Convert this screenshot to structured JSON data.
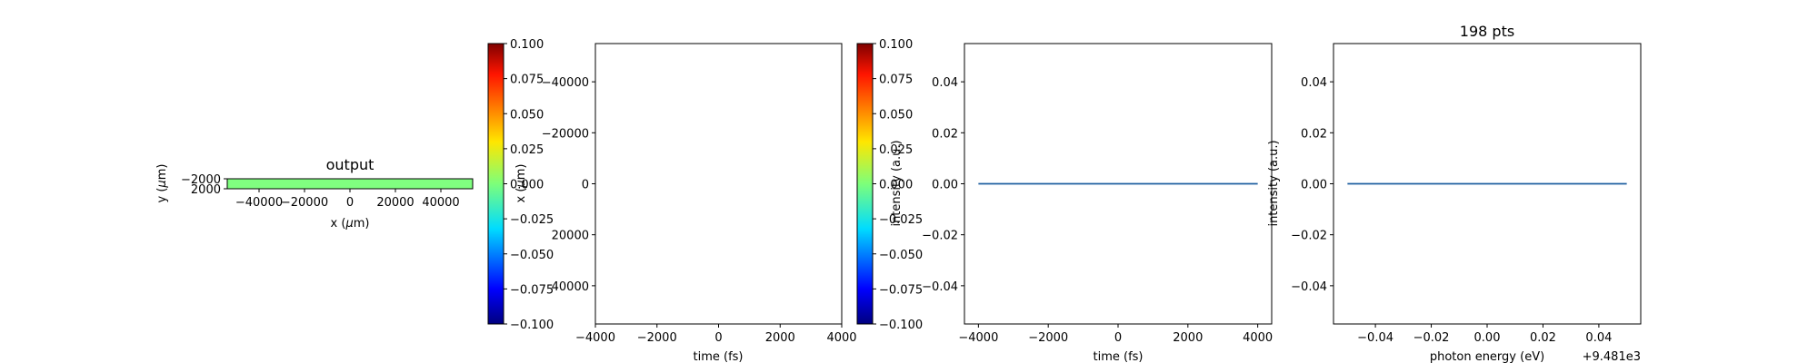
{
  "chart_data": [
    {
      "id": "output_map",
      "type": "heatmap",
      "title": "output",
      "xlabel": "x ($\\mu$m)",
      "ylabel": "y ($\\mu$m)",
      "xlim": [
        -54000,
        54000
      ],
      "ylim": [
        2000,
        -2000
      ],
      "xticks": [
        -40000,
        -20000,
        0,
        20000,
        40000
      ],
      "xtick_labels": [
        "−40000",
        "−20000",
        "0",
        "20000",
        "40000"
      ],
      "yticks": [
        -2000,
        2000
      ],
      "ytick_labels": [
        "−2000",
        "2000"
      ],
      "fill_color": "#80ff80",
      "values": "uniform 0"
    },
    {
      "id": "colorbar_1",
      "type": "heatmap",
      "colormap": "jet",
      "vlim": [
        -0.1,
        0.1
      ],
      "ticks": [
        -0.1,
        -0.075,
        -0.05,
        -0.025,
        0.0,
        0.025,
        0.05,
        0.075,
        0.1
      ],
      "tick_labels": [
        "−0.100",
        "−0.075",
        "−0.050",
        "−0.025",
        "0.000",
        "0.025",
        "0.050",
        "0.075",
        "0.100"
      ]
    },
    {
      "id": "time_map",
      "type": "heatmap",
      "xlabel": "time (fs)",
      "ylabel": "x ($\\mu$m)",
      "xlim": [
        -4000,
        4000
      ],
      "ylim": [
        55000,
        -55000
      ],
      "xticks": [
        -4000,
        -2000,
        0,
        2000,
        4000
      ],
      "xtick_labels": [
        "−4000",
        "−2000",
        "0",
        "2000",
        "4000"
      ],
      "yticks": [
        -40000,
        -20000,
        0,
        20000,
        40000
      ],
      "ytick_labels": [
        "−40000",
        "−20000",
        "0",
        "20000",
        "40000"
      ],
      "values": "empty"
    },
    {
      "id": "colorbar_2",
      "type": "heatmap",
      "colormap": "jet",
      "vlim": [
        -0.1,
        0.1
      ],
      "ticks": [
        -0.1,
        -0.075,
        -0.05,
        -0.025,
        0.0,
        0.025,
        0.05,
        0.075,
        0.1
      ],
      "tick_labels": [
        "−0.100",
        "−0.075",
        "−0.050",
        "−0.025",
        "0.000",
        "0.025",
        "0.050",
        "0.075",
        "0.100"
      ]
    },
    {
      "id": "time_line",
      "type": "line",
      "xlabel": "time (fs)",
      "ylabel": "intensity (a.u.)",
      "xlim": [
        -4400,
        4400
      ],
      "ylim": [
        -0.055,
        0.055
      ],
      "xticks": [
        -4000,
        -2000,
        0,
        2000,
        4000
      ],
      "xtick_labels": [
        "−4000",
        "−2000",
        "0",
        "2000",
        "4000"
      ],
      "yticks": [
        -0.04,
        -0.02,
        0.0,
        0.02,
        0.04
      ],
      "ytick_labels": [
        "−0.04",
        "−0.02",
        "0.00",
        "0.02",
        "0.04"
      ],
      "series": [
        {
          "x": [
            -4000,
            4000
          ],
          "y": [
            0,
            0
          ],
          "color": "#1f5fa0"
        }
      ]
    },
    {
      "id": "spectrum_line",
      "type": "line",
      "title": "198 pts",
      "xlabel": "photon energy (eV)",
      "ylabel": "intensity (a.u.)",
      "offset_label": "+9.481e3",
      "xlim": [
        -0.055,
        0.055
      ],
      "ylim": [
        -0.055,
        0.055
      ],
      "xticks": [
        -0.04,
        -0.02,
        0.0,
        0.02,
        0.04
      ],
      "xtick_labels": [
        "−0.04",
        "−0.02",
        "0.00",
        "0.02",
        "0.04"
      ],
      "yticks": [
        -0.04,
        -0.02,
        0.0,
        0.02,
        0.04
      ],
      "ytick_labels": [
        "−0.04",
        "−0.02",
        "0.00",
        "0.02",
        "0.04"
      ],
      "series": [
        {
          "x": [
            -0.05,
            0.05
          ],
          "y": [
            0,
            0
          ],
          "color": "#1f5fa0"
        }
      ]
    }
  ]
}
